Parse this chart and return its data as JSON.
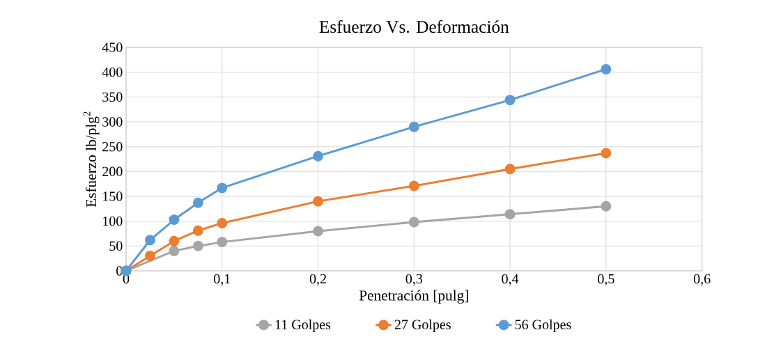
{
  "chart_data": {
    "type": "line",
    "title": "Esfuerzo Vs. Deformación",
    "xlabel": "Penetración [pulg]",
    "ylabel": "Esfuerzo lb/plg$^{2}$",
    "x": [
      0,
      0.025,
      0.05,
      0.075,
      0.1,
      0.2,
      0.3,
      0.4,
      0.5
    ],
    "series": [
      {
        "name": "11 Golpes",
        "color": "#a5a5a5",
        "values": [
          0,
          null,
          40,
          50,
          58,
          80,
          98,
          114,
          130
        ]
      },
      {
        "name": "27 Golpes",
        "color": "#ed7d31",
        "values": [
          0,
          30,
          60,
          81,
          96,
          140,
          171,
          205,
          237
        ]
      },
      {
        "name": "56 Golpes",
        "color": "#5b9bd5",
        "values": [
          0,
          62,
          103,
          137,
          167,
          231,
          290,
          344,
          406
        ]
      }
    ],
    "xlim": [
      0,
      0.6
    ],
    "ylim": [
      0,
      450
    ],
    "xticks": [
      0,
      {
        "value": 0.1,
        "label": "0,1"
      },
      {
        "value": 0.2,
        "label": "0,2"
      },
      {
        "value": 0.3,
        "label": "0,3"
      },
      {
        "value": 0.4,
        "label": "0,4"
      },
      {
        "value": 0.5,
        "label": "0,5"
      },
      {
        "value": 0.6,
        "label": "0,6"
      }
    ],
    "yticks": [
      0,
      50,
      100,
      150,
      200,
      250,
      300,
      350,
      400,
      450
    ],
    "grid": true,
    "legend": "bottom",
    "marker": "circle",
    "line_style": "solid"
  }
}
